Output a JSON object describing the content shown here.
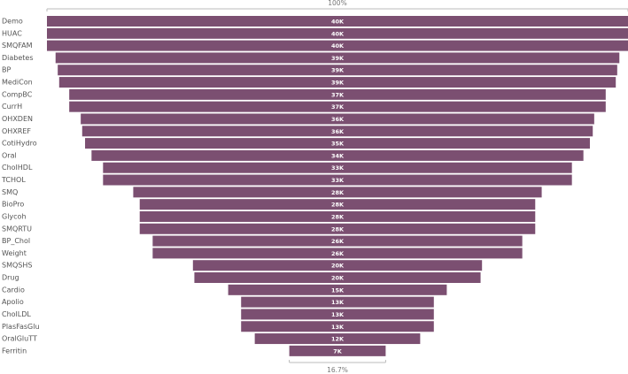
{
  "chart_data": {
    "type": "funnel",
    "top_percent_label": "100%",
    "bottom_percent_label": "16.7%",
    "color": "#7b4f71",
    "categories": [
      "Demo",
      "HUAC",
      "SMQFAM",
      "Diabetes",
      "BP",
      "MediCon",
      "CompBC",
      "CurrH",
      "OHXDEN",
      "OHXREF",
      "CotiHydro",
      "Oral",
      "CholHDL",
      "TCHOL",
      "SMQ",
      "BioPro",
      "Glycoh",
      "SMQRTU",
      "BP_Chol",
      "Weight",
      "SMQSHS",
      "Drug",
      "Cardio",
      "Apolio",
      "CholLDL",
      "PlasFasGlu",
      "OralGluTT",
      "Ferritin"
    ],
    "values": [
      40.4,
      40.4,
      40.4,
      39.2,
      38.9,
      38.7,
      37.3,
      37.3,
      35.7,
      35.5,
      35.1,
      34.2,
      32.6,
      32.6,
      28.4,
      27.5,
      27.5,
      27.5,
      25.7,
      25.7,
      20.1,
      19.9,
      15.2,
      13.4,
      13.4,
      13.4,
      11.5,
      6.7
    ],
    "value_labels": [
      "40K",
      "40K",
      "40K",
      "39K",
      "39K",
      "39K",
      "37K",
      "37K",
      "36K",
      "36K",
      "35K",
      "34K",
      "33K",
      "33K",
      "28K",
      "28K",
      "28K",
      "28K",
      "26K",
      "26K",
      "20K",
      "20K",
      "15K",
      "13K",
      "13K",
      "13K",
      "12K",
      "7K"
    ]
  }
}
